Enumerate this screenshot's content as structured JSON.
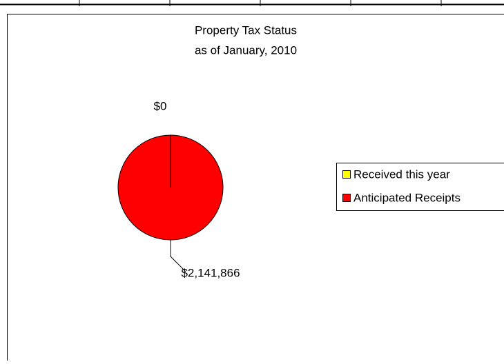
{
  "chart_data": {
    "type": "pie",
    "title": "Property Tax Status",
    "subtitle": "as of January, 2010",
    "categories": [
      "Received this year",
      "Anticipated Receipts"
    ],
    "values": [
      0,
      2141866
    ],
    "value_labels": [
      "$0",
      "$2,141,866"
    ],
    "colors": [
      "#ffff00",
      "#ff0000"
    ],
    "legend": "right"
  }
}
